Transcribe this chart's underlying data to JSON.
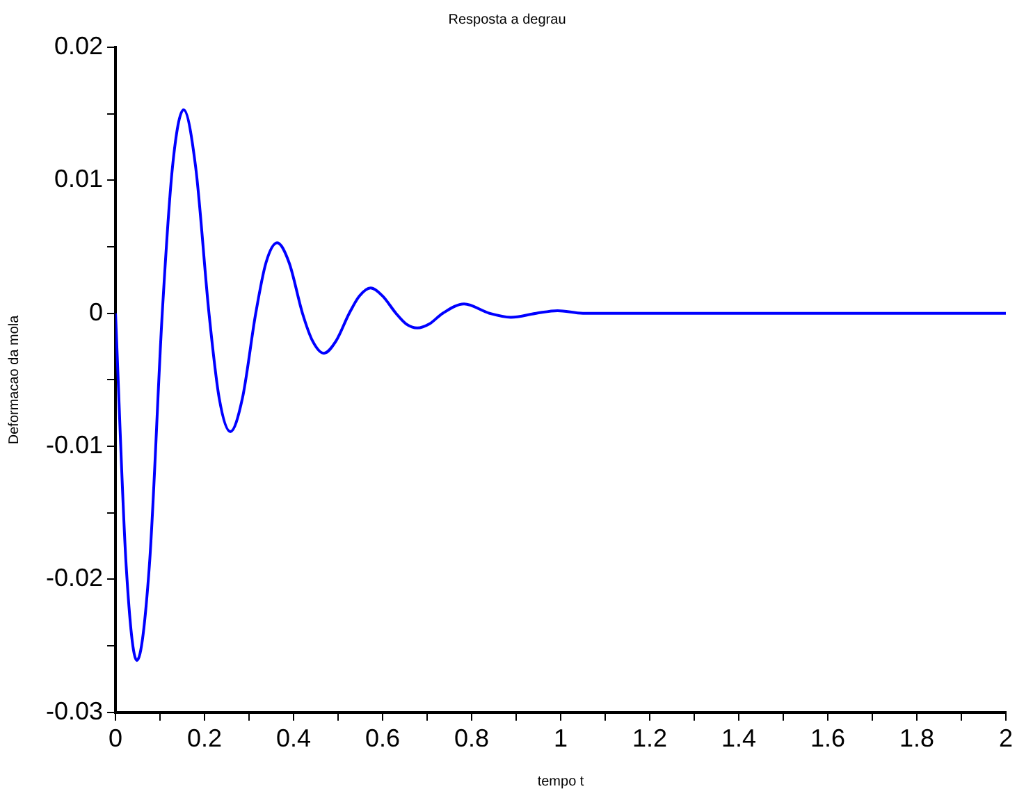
{
  "chart_data": {
    "type": "line",
    "title": "Resposta a degrau",
    "xlabel": "tempo t",
    "ylabel": "Deformacao da mola",
    "xlim": [
      0,
      2
    ],
    "ylim": [
      -0.03,
      0.02
    ],
    "xticks": [
      0,
      {
        "value": 0.1,
        "label": null
      },
      0.2,
      {
        "value": 0.3,
        "label": null
      },
      0.4,
      {
        "value": 0.5,
        "label": null
      },
      0.6,
      {
        "value": 0.7,
        "label": null
      },
      0.8,
      {
        "value": 0.9,
        "label": null
      },
      1,
      {
        "value": 1.1,
        "label": null
      },
      1.2,
      {
        "value": 1.3,
        "label": null
      },
      1.4,
      {
        "value": 1.5,
        "label": null
      },
      1.6,
      {
        "value": 1.7,
        "label": null
      },
      1.8,
      {
        "value": 1.9,
        "label": null
      },
      2
    ],
    "yticks": [
      -0.03,
      {
        "value": -0.025,
        "label": null
      },
      -0.02,
      {
        "value": -0.015,
        "label": null
      },
      -0.01,
      {
        "value": -0.005,
        "label": null
      },
      0,
      {
        "value": 0.005,
        "label": null
      },
      0.01,
      {
        "value": 0.015,
        "label": null
      },
      0.02
    ],
    "grid": false,
    "legend": false,
    "marker": "none",
    "line_style": "solid",
    "x": [
      0,
      0.024,
      0.048,
      0.076,
      0.105,
      0.128,
      0.153,
      0.18,
      0.21,
      0.233,
      0.258,
      0.285,
      0.315,
      0.338,
      0.363,
      0.39,
      0.42,
      0.443,
      0.468,
      0.495,
      0.525,
      0.548,
      0.573,
      0.6,
      0.63,
      0.653,
      0.678,
      0.705,
      0.735,
      0.783,
      0.84,
      0.888,
      0.945,
      0.993,
      1.05,
      1.2,
      1.4,
      1.6,
      1.8,
      2
    ],
    "series": [
      {
        "color": "#0000ff",
        "values": [
          0,
          -0.019,
          -0.0261,
          -0.019,
          0,
          0.011,
          0.0153,
          0.011,
          0,
          -0.0064,
          -0.0089,
          -0.0064,
          0,
          0.0038,
          0.0053,
          0.0038,
          0,
          -0.0021,
          -0.003,
          -0.0021,
          0,
          0.0013,
          0.0019,
          0.0013,
          0,
          -0.0008,
          -0.0011,
          -0.0008,
          0,
          0.0007,
          0,
          -0.0003,
          0,
          0.0002,
          0,
          0,
          0,
          0,
          0,
          0
        ]
      }
    ]
  }
}
